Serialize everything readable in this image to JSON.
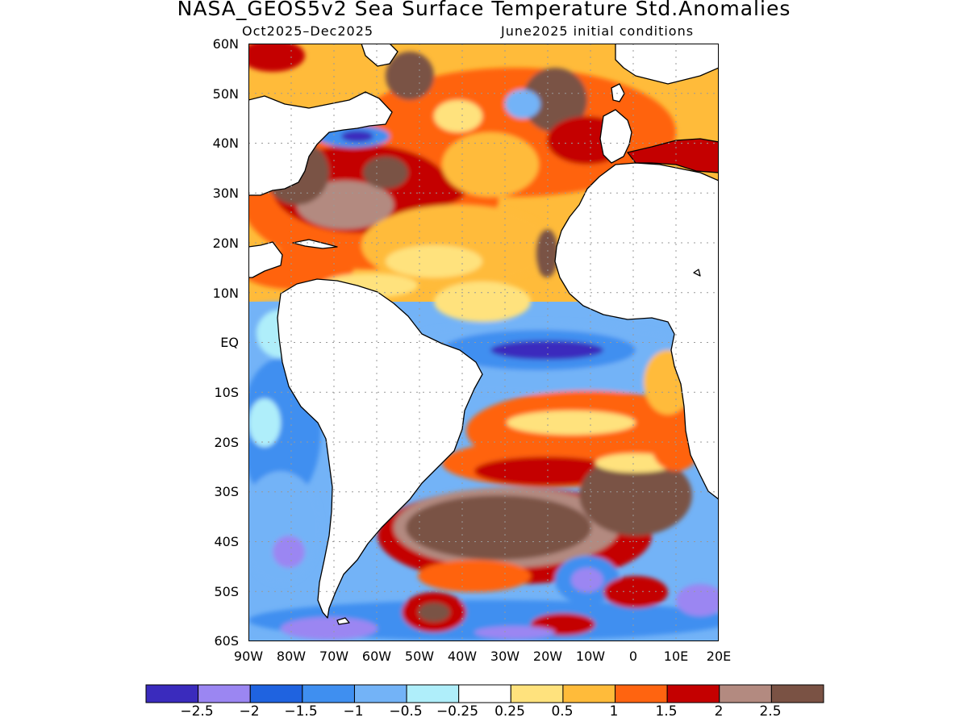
{
  "title": "NASA_GEOS5v2 Sea Surface Temperature Std.Anomalies",
  "subtitle_period": "Oct2025–Dec2025",
  "subtitle_init": "June2025 initial conditions",
  "lat_labels": [
    "60N",
    "50N",
    "40N",
    "30N",
    "20N",
    "10N",
    "EQ",
    "10S",
    "20S",
    "30S",
    "40S",
    "50S",
    "60S"
  ],
  "lon_labels": [
    "90W",
    "80W",
    "70W",
    "60W",
    "50W",
    "40W",
    "30W",
    "20W",
    "10W",
    "0",
    "10E",
    "20E"
  ],
  "colorbar": {
    "colors": [
      "#3a2bbd",
      "#9b86f2",
      "#1f63e0",
      "#3f8ff0",
      "#73b3f7",
      "#afeefa",
      "#ffffff",
      "#ffe27d",
      "#ffbb3a",
      "#ff6410",
      "#c40000",
      "#b38a80",
      "#7a5244"
    ],
    "tick_labels": [
      "−2.5",
      "−2",
      "−1.5",
      "−1",
      "−0.5",
      "−0.25",
      "0.25",
      "0.5",
      "1",
      "1.5",
      "2",
      "2.5"
    ]
  },
  "map": {
    "region": "Atlantic Ocean, 90W–20E, 60S–60N",
    "land_color": "#ffffff",
    "coastline_color": "#000000"
  }
}
